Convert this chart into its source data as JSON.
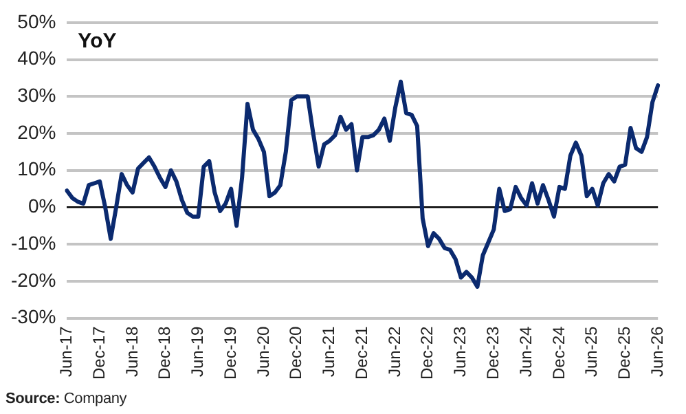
{
  "chart_data": {
    "type": "line",
    "title": "YoY",
    "categories": [
      "Jun-17",
      null,
      null,
      null,
      null,
      null,
      "Dec-17",
      null,
      null,
      null,
      null,
      null,
      "Jun-18",
      null,
      null,
      null,
      null,
      null,
      "Dec-18",
      null,
      null,
      null,
      null,
      null,
      "Jun-19",
      null,
      null,
      null,
      null,
      null,
      "Dec-19",
      null,
      null,
      null,
      null,
      null,
      "Jun-20",
      null,
      null,
      null,
      null,
      null,
      "Dec-20",
      null,
      null,
      null,
      null,
      null,
      "Jun-21",
      null,
      null,
      null,
      null,
      null,
      "Dec-21",
      null,
      null,
      null,
      null,
      null,
      "Jun-22",
      null,
      null,
      null,
      null,
      null,
      "Dec-22",
      null,
      null,
      null,
      null,
      null,
      "Jun-23",
      null,
      null,
      null,
      null,
      null,
      "Dec-23",
      null,
      null,
      null,
      null,
      null,
      "Jun-24",
      null,
      null,
      null,
      null,
      null,
      "Dec-24",
      null,
      null,
      null,
      null,
      null,
      "Jun-25",
      null,
      null,
      null,
      null,
      null,
      "Dec-25",
      null,
      null,
      null,
      null,
      null,
      "Jun-26"
    ],
    "series": [
      {
        "color": "#0b2a6f",
        "values": [
          4.5,
          2.5,
          1.5,
          1,
          6,
          6.5,
          7,
          0,
          -8.5,
          0,
          9,
          6,
          4,
          10.5,
          12,
          13.5,
          11,
          8,
          5.5,
          10,
          7,
          2,
          -1.5,
          -2.5,
          -2.5,
          11,
          12.5,
          4,
          -1,
          1,
          5,
          -5,
          8,
          28,
          21,
          18.5,
          15,
          3,
          4,
          6,
          15,
          29,
          30,
          30,
          30,
          20,
          11,
          17,
          18,
          19.5,
          24.5,
          21,
          22.5,
          10,
          19,
          19,
          19.5,
          21,
          24,
          18,
          27,
          34,
          25.5,
          25,
          22,
          -3,
          -10.5,
          -7,
          -8.5,
          -11,
          -11.5,
          -14,
          -19,
          -17.5,
          -19,
          -21.5,
          -13,
          -9.5,
          -6,
          5,
          -1,
          -0.5,
          5.5,
          2.5,
          0.5,
          6.5,
          1,
          6,
          2,
          -2.5,
          5.5,
          5,
          14,
          17.5,
          14,
          3,
          5,
          0.5,
          6.5,
          9,
          7,
          11,
          11.5,
          21.5,
          16,
          15,
          19,
          28.5,
          33
        ]
      }
    ],
    "ylim": [
      -30,
      50
    ],
    "yticks": [
      {
        "value": -30,
        "label": "-30%"
      },
      {
        "value": -20,
        "label": "-20%"
      },
      {
        "value": -10,
        "label": "-10%"
      },
      {
        "value": 0,
        "label": "0%"
      },
      {
        "value": 10,
        "label": "10%"
      },
      {
        "value": 20,
        "label": "20%"
      },
      {
        "value": 30,
        "label": "30%"
      },
      {
        "value": 40,
        "label": "40%"
      },
      {
        "value": 50,
        "label": "50%"
      }
    ],
    "grid": "y",
    "legend": false,
    "marker": "none",
    "line_style": "solid",
    "annotations": [
      "Source: Company"
    ]
  }
}
